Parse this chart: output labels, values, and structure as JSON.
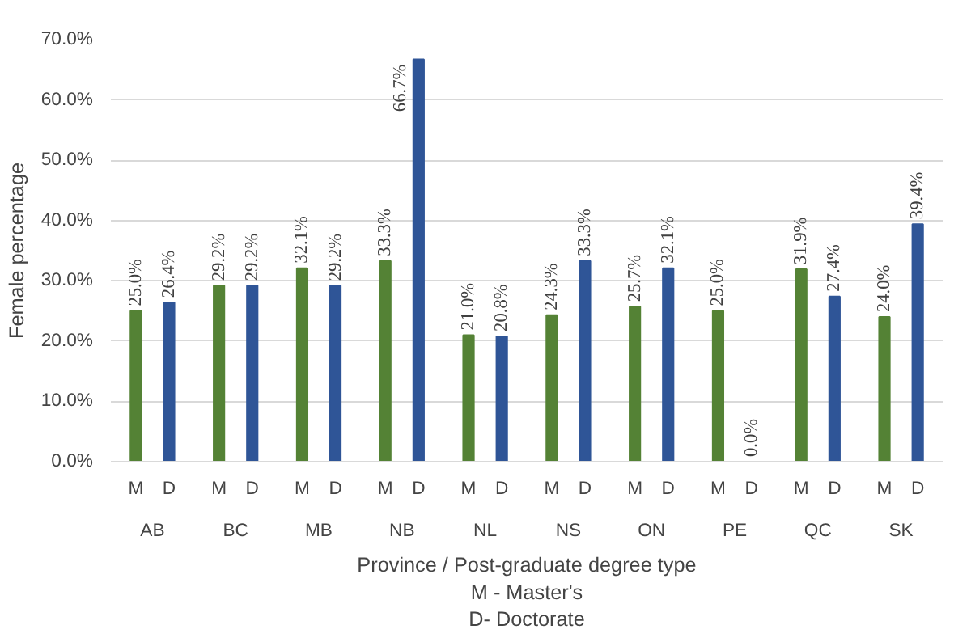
{
  "chart_data": {
    "type": "bar",
    "xlabel": "Province / Post-graduate degree type\nM - Master's\nD- Doctorate",
    "ylabel": "Female percentage",
    "categories": [
      "AB",
      "BC",
      "MB",
      "NB",
      "NL",
      "NS",
      "ON",
      "PE",
      "QC",
      "SK"
    ],
    "series": [
      {
        "name": "M",
        "color": "#548235",
        "values": [
          25.0,
          29.2,
          32.1,
          33.3,
          21.0,
          24.3,
          25.7,
          25.0,
          31.9,
          24.0
        ],
        "value_labels": [
          "25.0%",
          "29.2%",
          "32.1%",
          "33.3%",
          "21.0%",
          "24.3%",
          "25.7%",
          "25.0%",
          "31.9%",
          "24.0%"
        ]
      },
      {
        "name": "D",
        "color": "#2f5597",
        "values": [
          26.4,
          29.2,
          29.2,
          66.7,
          20.8,
          33.3,
          32.1,
          0.0,
          27.4,
          39.4
        ],
        "value_labels": [
          "26.4%",
          "29.2%",
          "29.2%",
          "66.7%",
          "20.8%",
          "33.3%",
          "32.1%",
          "0.0%",
          "27.4%",
          "39.4%"
        ]
      }
    ],
    "ylim": [
      0,
      70
    ],
    "yticks": [
      {
        "value": 0,
        "label": "0.0%"
      },
      {
        "value": 10,
        "label": "10.0%"
      },
      {
        "value": 20,
        "label": "20.0%"
      },
      {
        "value": 30,
        "label": "30.0%"
      },
      {
        "value": 40,
        "label": "40.0%"
      },
      {
        "value": 50,
        "label": "50.0%"
      },
      {
        "value": 60,
        "label": "60.0%"
      },
      {
        "value": 70,
        "label": "70.0%"
      }
    ],
    "grid": "y"
  }
}
